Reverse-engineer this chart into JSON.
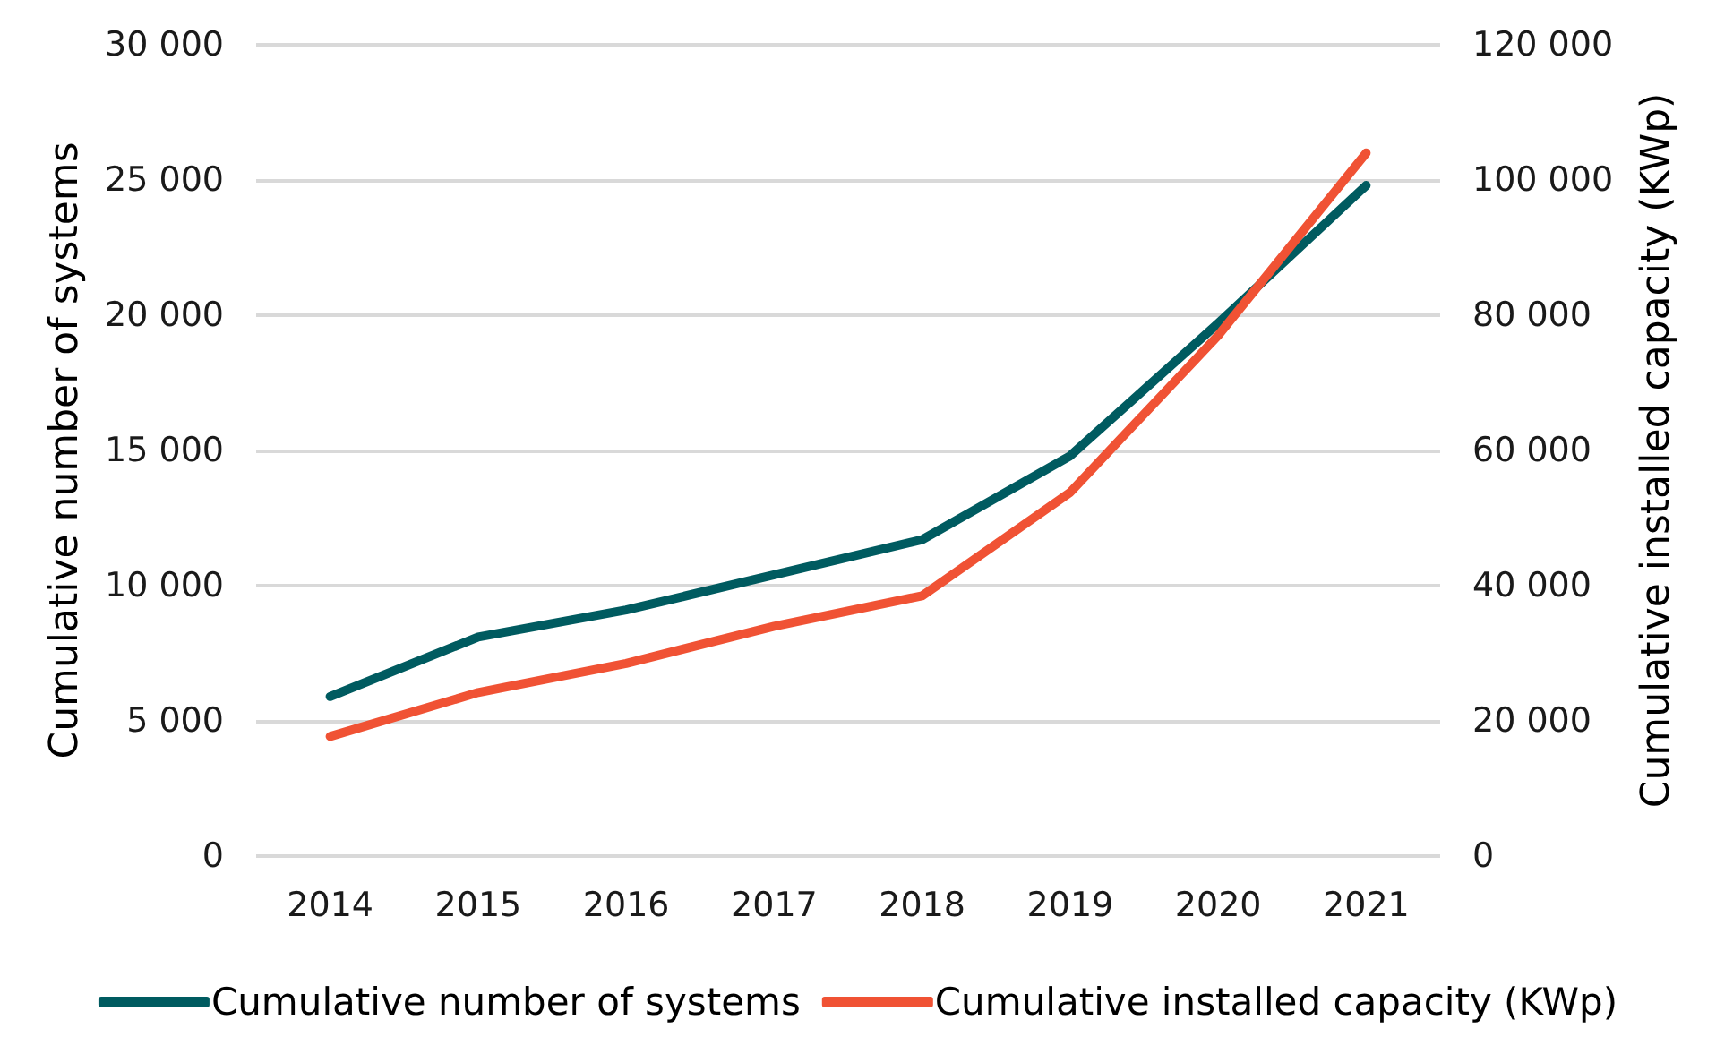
{
  "chart_data": {
    "type": "line",
    "categories": [
      "2014",
      "2015",
      "2016",
      "2017",
      "2018",
      "2019",
      "2020",
      "2021"
    ],
    "series": [
      {
        "name": "Cumulative number of systems",
        "color": "#005b60",
        "values": [
          5900,
          8100,
          9100,
          10400,
          11700,
          14800,
          19700,
          24800
        ]
      },
      {
        "name": "Cumulative installed capacity (KWp)",
        "color": "#f05234",
        "axis": "y2",
        "values": [
          17700,
          24200,
          28500,
          34000,
          38500,
          53800,
          77000,
          104000
        ]
      }
    ],
    "ylabel": "Cumulative number of systems",
    "y2label": "Cumulative installed capacity (KWp)",
    "ylim": [
      0,
      30000
    ],
    "yticks": [
      {
        "value": 0,
        "label": "0"
      },
      {
        "value": 5000,
        "label": "5 000"
      },
      {
        "value": 10000,
        "label": "10 000"
      },
      {
        "value": 15000,
        "label": "15 000"
      },
      {
        "value": 20000,
        "label": "20 000"
      },
      {
        "value": 25000,
        "label": "25 000"
      },
      {
        "value": 30000,
        "label": "30 000"
      }
    ],
    "y2lim": [
      0,
      120000
    ],
    "y2ticks": [
      {
        "value": 0,
        "label": "0"
      },
      {
        "value": 20000,
        "label": "20 000"
      },
      {
        "value": 40000,
        "label": "40 000"
      },
      {
        "value": 60000,
        "label": "60 000"
      },
      {
        "value": 80000,
        "label": "80 000"
      },
      {
        "value": 100000,
        "label": "100 000"
      },
      {
        "value": 120000,
        "label": "120 000"
      }
    ],
    "grid": "y",
    "legend": "bottom",
    "line_style": "solid"
  }
}
